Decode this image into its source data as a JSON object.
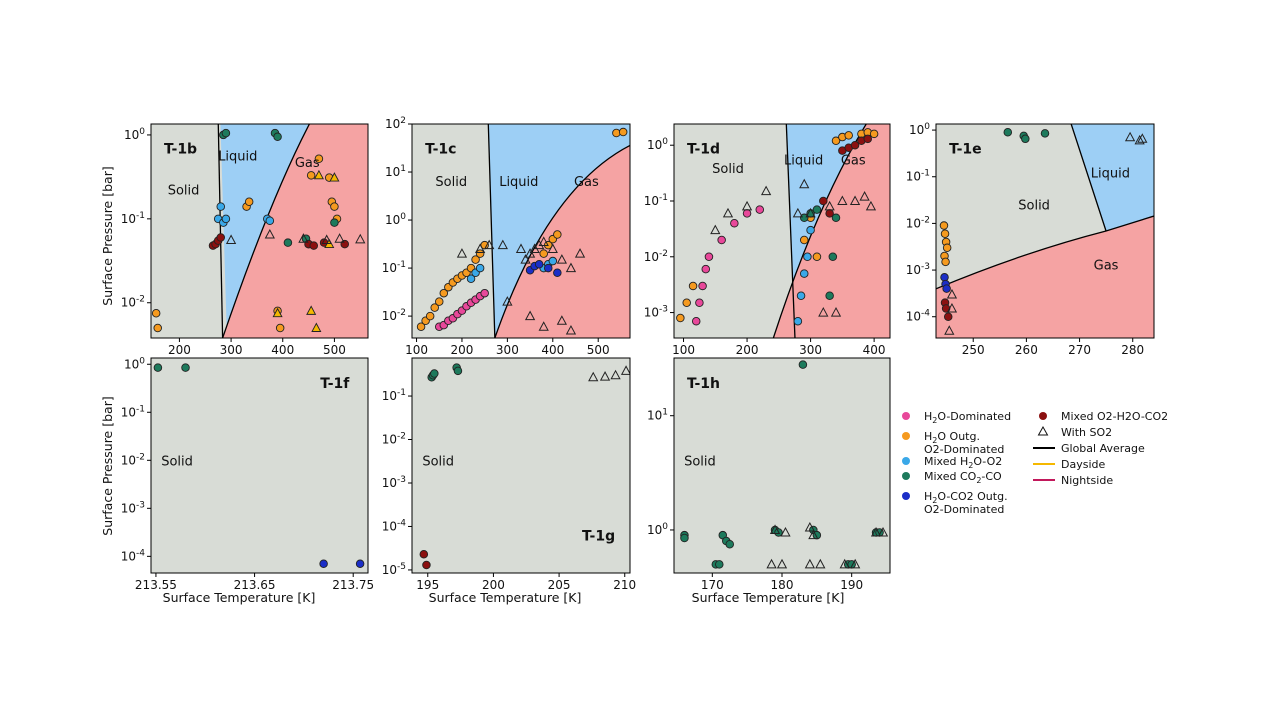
{
  "figure": {
    "ylabel": "Surface Pressure [bar]",
    "xlabel": "Surface Temperature [K]"
  },
  "legend": {
    "col1": [
      {
        "label_main": "H",
        "sub": "2",
        "label_rest": "O-Dominated",
        "color": "#e8489a"
      },
      {
        "label_main": "H",
        "sub": "2",
        "label_rest": "O Outg.",
        "line2": "O2-Dominated",
        "color": "#f59a1f"
      },
      {
        "label_main": "Mixed H",
        "sub": "2",
        "label_rest": "O-O2",
        "color": "#3aa8e8"
      },
      {
        "label_main": "Mixed CO",
        "sub": "2",
        "label_rest": "-CO",
        "color": "#1d7a5c"
      },
      {
        "label_main": "H",
        "sub": "2",
        "label_rest": "O-CO2 Outg.",
        "line2": "O2-Dominated",
        "color": "#1b2ec7"
      }
    ],
    "col2": [
      {
        "label": "Mixed O2-H2O-CO2",
        "color": "#8b1010",
        "kind": "marker"
      },
      {
        "label": "With SO2",
        "kind": "triangle"
      },
      {
        "label": "Global Average",
        "color": "#000000",
        "kind": "line"
      },
      {
        "label": "Dayside",
        "color": "#f5b800",
        "kind": "line"
      },
      {
        "label": "Nightside",
        "color": "#c2185b",
        "kind": "line"
      }
    ]
  },
  "colors": {
    "solid": "#d8dcd6",
    "liquid": "#9dcff5",
    "gas": "#f5a3a3",
    "boundary": "#000000"
  },
  "chart_data": [
    {
      "type": "scatter",
      "title": "T-1b",
      "xscale": "linear",
      "yscale": "log",
      "xlim": [
        145,
        565
      ],
      "ylim": [
        0.0038,
        1.35
      ],
      "xticks": [
        200,
        300,
        400,
        500
      ],
      "xticklabels": [
        "200",
        "300",
        "400",
        "500"
      ],
      "yticks": [
        0.01,
        0.1,
        1
      ],
      "yticklabels": [
        "10^-2",
        "10^-1",
        "10^0"
      ],
      "regions": [
        "Solid",
        "Liquid",
        "Gas"
      ],
      "series": [
        {
          "name": "H2O Outg. O2-Dominated",
          "color": "#f59a1f",
          "x": [
            155,
            158,
            330,
            335,
            455,
            470,
            390,
            395,
            490,
            495,
            500,
            505
          ],
          "y": [
            0.0075,
            0.005,
            0.14,
            0.16,
            0.33,
            0.52,
            0.008,
            0.005,
            0.31,
            0.16,
            0.14,
            0.1
          ]
        },
        {
          "name": "Mixed H2O-O2",
          "color": "#3aa8e8",
          "x": [
            275,
            280,
            285,
            290,
            370,
            375
          ],
          "y": [
            0.1,
            0.14,
            0.09,
            0.1,
            0.1,
            0.095
          ]
        },
        {
          "name": "Mixed CO2-CO",
          "color": "#1d7a5c",
          "x": [
            285,
            290,
            385,
            390,
            410,
            445,
            450,
            500
          ],
          "y": [
            1.0,
            1.05,
            1.05,
            0.95,
            0.052,
            0.058,
            0.05,
            0.09
          ]
        },
        {
          "name": "Mixed O2-H2O-CO2",
          "color": "#8b1010",
          "x": [
            265,
            270,
            275,
            280,
            450,
            460,
            480,
            520
          ],
          "y": [
            0.048,
            0.05,
            0.055,
            0.06,
            0.05,
            0.048,
            0.052,
            0.05
          ]
        },
        {
          "name": "Dayside",
          "color": "#f5b800",
          "x": [
            390,
            455,
            465,
            470,
            490,
            500
          ],
          "y": [
            0.0075,
            0.008,
            0.005,
            0.33,
            0.05,
            0.31
          ],
          "marker": "triangle"
        }
      ],
      "triangles": [
        [
          300,
          0.056
        ],
        [
          375,
          0.065
        ],
        [
          440,
          0.058
        ],
        [
          485,
          0.056
        ],
        [
          510,
          0.058
        ],
        [
          550,
          0.057
        ]
      ]
    },
    {
      "type": "scatter",
      "title": "T-1c",
      "xscale": "linear",
      "yscale": "log",
      "xlim": [
        90,
        570
      ],
      "ylim": [
        0.0035,
        100
      ],
      "xticks": [
        100,
        200,
        300,
        400,
        500
      ],
      "xticklabels": [
        "100",
        "200",
        "300",
        "400",
        "500"
      ],
      "yticks": [
        0.01,
        0.1,
        1,
        10,
        100
      ],
      "yticklabels": [
        "10^-2",
        "10^-1",
        "10^0",
        "10^1",
        "10^2"
      ],
      "regions": [
        "Solid",
        "Liquid",
        "Gas"
      ],
      "series": [
        {
          "name": "H2O-Dominated",
          "color": "#e8489a",
          "x": [
            150,
            160,
            170,
            180,
            190,
            200,
            210,
            220,
            230,
            240,
            250
          ],
          "y": [
            0.006,
            0.0065,
            0.008,
            0.009,
            0.011,
            0.013,
            0.016,
            0.019,
            0.022,
            0.026,
            0.03
          ]
        },
        {
          "name": "H2O Outg. O2-Dominated",
          "color": "#f59a1f",
          "x": [
            110,
            120,
            130,
            140,
            150,
            160,
            170,
            180,
            190,
            200,
            210,
            220,
            230,
            240,
            250,
            380,
            390,
            400,
            410,
            540,
            555
          ],
          "y": [
            0.006,
            0.008,
            0.01,
            0.015,
            0.02,
            0.03,
            0.04,
            0.05,
            0.06,
            0.07,
            0.08,
            0.1,
            0.15,
            0.2,
            0.3,
            0.2,
            0.3,
            0.4,
            0.5,
            65,
            68
          ]
        },
        {
          "name": "Mixed H2O-O2",
          "color": "#3aa8e8",
          "x": [
            220,
            230,
            240,
            380,
            390,
            400
          ],
          "y": [
            0.06,
            0.08,
            0.1,
            0.1,
            0.12,
            0.14
          ]
        },
        {
          "name": "H2O-CO2 Outg. O2-Dominated",
          "color": "#1b2ec7",
          "x": [
            350,
            360,
            370,
            390,
            410
          ],
          "y": [
            0.09,
            0.11,
            0.12,
            0.1,
            0.08
          ]
        }
      ],
      "triangles": [
        [
          200,
          0.2
        ],
        [
          240,
          0.25
        ],
        [
          260,
          0.3
        ],
        [
          290,
          0.3
        ],
        [
          330,
          0.25
        ],
        [
          340,
          0.15
        ],
        [
          350,
          0.2
        ],
        [
          360,
          0.25
        ],
        [
          370,
          0.3
        ],
        [
          380,
          0.35
        ],
        [
          400,
          0.25
        ],
        [
          420,
          0.15
        ],
        [
          440,
          0.1
        ],
        [
          460,
          0.2
        ],
        [
          300,
          0.02
        ],
        [
          350,
          0.01
        ],
        [
          380,
          0.006
        ],
        [
          420,
          0.008
        ],
        [
          440,
          0.005
        ]
      ]
    },
    {
      "type": "scatter",
      "title": "T-1d",
      "xscale": "linear",
      "yscale": "log",
      "xlim": [
        85,
        425
      ],
      "ylim": [
        0.00035,
        2.4
      ],
      "xticks": [
        100,
        200,
        300,
        400
      ],
      "xticklabels": [
        "100",
        "200",
        "300",
        "400"
      ],
      "yticks": [
        0.001,
        0.01,
        0.1,
        1
      ],
      "yticklabels": [
        "10^-3",
        "10^-2",
        "10^-1",
        "10^0"
      ],
      "regions": [
        "Solid",
        "Liquid",
        "Gas"
      ],
      "series": [
        {
          "name": "H2O-Dominated",
          "color": "#e8489a",
          "x": [
            120,
            125,
            130,
            135,
            140,
            160,
            180,
            200,
            220
          ],
          "y": [
            0.0007,
            0.0015,
            0.003,
            0.006,
            0.01,
            0.02,
            0.04,
            0.06,
            0.07
          ]
        },
        {
          "name": "H2O Outg. O2-Dominated",
          "color": "#f59a1f",
          "x": [
            95,
            105,
            115,
            290,
            300,
            310,
            340,
            350,
            360,
            380,
            390,
            400
          ],
          "y": [
            0.0008,
            0.0015,
            0.003,
            0.02,
            0.05,
            0.01,
            1.2,
            1.4,
            1.5,
            1.6,
            1.7,
            1.6
          ]
        },
        {
          "name": "Mixed H2O-O2",
          "color": "#3aa8e8",
          "x": [
            280,
            285,
            290,
            295,
            300
          ],
          "y": [
            0.0007,
            0.002,
            0.005,
            0.01,
            0.03
          ]
        },
        {
          "name": "Mixed CO2-CO",
          "color": "#1d7a5c",
          "x": [
            290,
            300,
            310,
            330,
            335,
            340
          ],
          "y": [
            0.05,
            0.06,
            0.07,
            0.002,
            0.01,
            0.05
          ]
        },
        {
          "name": "Mixed O2-H2O-CO2",
          "color": "#8b1010",
          "x": [
            320,
            330,
            350,
            360,
            370,
            380,
            390
          ],
          "y": [
            0.1,
            0.06,
            0.8,
            0.9,
            1.0,
            1.2,
            1.3
          ]
        }
      ],
      "triangles": [
        [
          150,
          0.03
        ],
        [
          170,
          0.06
        ],
        [
          200,
          0.08
        ],
        [
          230,
          0.15
        ],
        [
          280,
          0.06
        ],
        [
          290,
          0.2
        ],
        [
          300,
          0.06
        ],
        [
          330,
          0.08
        ],
        [
          350,
          0.1
        ],
        [
          370,
          0.1
        ],
        [
          385,
          0.12
        ],
        [
          395,
          0.08
        ],
        [
          320,
          0.001
        ],
        [
          340,
          0.001
        ]
      ]
    },
    {
      "type": "scatter",
      "title": "T-1e",
      "xscale": "linear",
      "yscale": "log",
      "xlim": [
        243,
        284
      ],
      "ylim": [
        3.5e-05,
        1.35
      ],
      "xticks": [
        250,
        260,
        270,
        280
      ],
      "xticklabels": [
        "250",
        "260",
        "270",
        "280"
      ],
      "yticks": [
        0.0001,
        0.001,
        0.01,
        0.1,
        1
      ],
      "yticklabels": [
        "10^-4",
        "10^-3",
        "10^-2",
        "10^-1",
        "10^0"
      ],
      "regions": [
        "Solid",
        "Liquid",
        "Gas"
      ],
      "series": [
        {
          "name": "H2O Outg. O2-Dominated",
          "color": "#f59a1f",
          "x": [
            244.5,
            244.7,
            244.9,
            245.1,
            244.6,
            244.8
          ],
          "y": [
            0.009,
            0.006,
            0.004,
            0.003,
            0.002,
            0.0015
          ]
        },
        {
          "name": "H2O-CO2 Outg. O2-Dominated",
          "color": "#1b2ec7",
          "x": [
            244.6,
            244.8,
            245.0
          ],
          "y": [
            0.0007,
            0.0005,
            0.0004
          ]
        },
        {
          "name": "Mixed CO2-CO",
          "color": "#1d7a5c",
          "x": [
            256.5,
            259.5,
            259.8,
            263.5
          ],
          "y": [
            0.9,
            0.75,
            0.65,
            0.85
          ]
        },
        {
          "name": "Mixed O2-H2O-CO2",
          "color": "#8b1010",
          "x": [
            244.7,
            244.9,
            245.3
          ],
          "y": [
            0.0002,
            0.00015,
            0.0001
          ]
        }
      ],
      "triangles": [
        [
          279.5,
          0.7
        ],
        [
          281.3,
          0.6
        ],
        [
          281.8,
          0.65
        ],
        [
          246,
          0.0003
        ],
        [
          246,
          0.00015
        ],
        [
          245.5,
          5e-05
        ]
      ]
    },
    {
      "type": "scatter",
      "title": "T-1f",
      "xscale": "linear",
      "yscale": "log",
      "xlim": [
        213.545,
        213.765
      ],
      "ylim": [
        4.5e-05,
        1.35
      ],
      "xticks": [
        213.55,
        213.65,
        213.75
      ],
      "xticklabels": [
        "213.55",
        "213.65",
        "213.75"
      ],
      "yticks": [
        0.0001,
        0.001,
        0.01,
        0.1,
        1
      ],
      "yticklabels": [
        "10^-4",
        "10^-3",
        "10^-2",
        "10^-1",
        "10^0"
      ],
      "regions": [
        "Solid"
      ],
      "series": [
        {
          "name": "Mixed CO2-CO",
          "color": "#1d7a5c",
          "x": [
            213.552,
            213.58
          ],
          "y": [
            0.85,
            0.85
          ]
        },
        {
          "name": "H2O-CO2 Outg. O2-Dominated",
          "color": "#1b2ec7",
          "x": [
            213.72,
            213.757
          ],
          "y": [
            7e-05,
            7e-05
          ]
        }
      ],
      "triangles": []
    },
    {
      "type": "scatter",
      "title": "T-1g",
      "xscale": "linear",
      "yscale": "log",
      "xlim": [
        193.8,
        210.4
      ],
      "ylim": [
        8.5e-06,
        0.75
      ],
      "xticks": [
        195,
        200,
        205,
        210
      ],
      "xticklabels": [
        "195",
        "200",
        "205",
        "210"
      ],
      "yticks": [
        1e-05,
        0.0001,
        0.001,
        0.01,
        0.1
      ],
      "yticklabels": [
        "10^-5",
        "10^-4",
        "10^-3",
        "10^-2",
        "10^-1"
      ],
      "regions": [
        "Solid"
      ],
      "series": [
        {
          "name": "Mixed CO2-CO",
          "color": "#1d7a5c",
          "x": [
            195.3,
            195.4,
            195.5,
            197.2,
            197.3
          ],
          "y": [
            0.27,
            0.3,
            0.33,
            0.45,
            0.38
          ]
        },
        {
          "name": "Mixed O2-H2O-CO2",
          "color": "#8b1010",
          "x": [
            194.7,
            194.9
          ],
          "y": [
            2.3e-05,
            1.3e-05
          ]
        }
      ],
      "triangles": [
        [
          207.6,
          0.27
        ],
        [
          208.5,
          0.28
        ],
        [
          209.3,
          0.3
        ],
        [
          210.1,
          0.38
        ]
      ]
    },
    {
      "type": "scatter",
      "title": "T-1h",
      "xscale": "linear",
      "yscale": "log",
      "xlim": [
        164.5,
        195.5
      ],
      "ylim": [
        0.42,
        32
      ],
      "xticks": [
        170,
        180,
        190
      ],
      "xticklabels": [
        "170",
        "180",
        "190"
      ],
      "yticks": [
        1,
        10
      ],
      "yticklabels": [
        "10^0",
        "10^1"
      ],
      "regions": [
        "Solid"
      ],
      "series": [
        {
          "name": "Mixed CO2-CO",
          "color": "#1d7a5c",
          "x": [
            166,
            166,
            170.5,
            171,
            171.5,
            172,
            172.5,
            183,
            179,
            179.5,
            184.5,
            185,
            189.5,
            190,
            193.5,
            194
          ],
          "y": [
            0.9,
            0.85,
            0.5,
            0.5,
            0.9,
            0.8,
            0.75,
            28,
            1.0,
            0.95,
            1.0,
            0.9,
            0.5,
            0.5,
            0.95,
            0.95
          ]
        }
      ],
      "triangles": [
        [
          179,
          1.0
        ],
        [
          180.5,
          0.95
        ],
        [
          178.5,
          0.5
        ],
        [
          180,
          0.5
        ],
        [
          184,
          1.05
        ],
        [
          184.5,
          0.9
        ],
        [
          184,
          0.5
        ],
        [
          185.5,
          0.5
        ],
        [
          189,
          0.5
        ],
        [
          190.5,
          0.5
        ],
        [
          193.5,
          0.95
        ],
        [
          194.5,
          0.95
        ]
      ]
    }
  ]
}
